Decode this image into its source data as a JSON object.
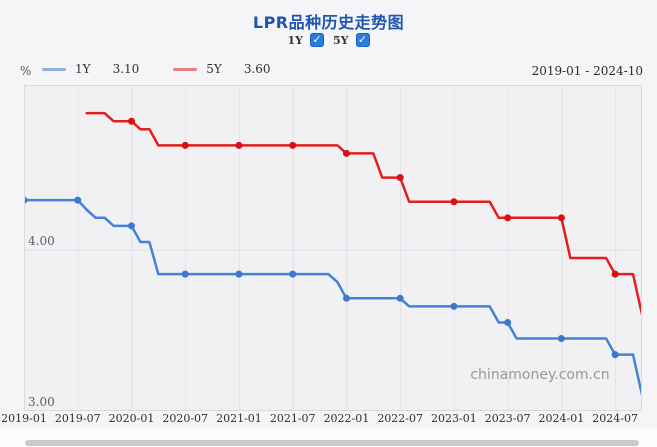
{
  "header": {
    "title": "LPR品种历史走势图",
    "toggles": [
      {
        "label": "1Y",
        "checked": true
      },
      {
        "label": "5Y",
        "checked": true
      }
    ]
  },
  "legend": {
    "unit": "%",
    "items": [
      {
        "label": "1Y",
        "value": "3.10",
        "swatch_color": "#8fb0da"
      },
      {
        "label": "5Y",
        "value": "3.60",
        "swatch_color": "#e38181"
      }
    ],
    "date_range": "2019-01 - 2024-10"
  },
  "watermark": "chinamoney.com.cn",
  "colors": {
    "title_blue": "#1f55ad",
    "checkbox_blue": "#2b7ce0",
    "plot_bg": "#f1f1f3",
    "plot_border": "#d9d9de",
    "gridline": "#e2e2e8",
    "axis_text": "#5c5c60"
  },
  "chart_data": {
    "type": "line",
    "title": "LPR品种历史走势图",
    "xlabel": "",
    "ylabel": "%",
    "x_start": "2019-01",
    "x_end": "2024-10",
    "months_total": 70,
    "x_ticks": [
      "2019-01",
      "2019-07",
      "2020-01",
      "2020-07",
      "2021-01",
      "2021-07",
      "2022-01",
      "2022-07",
      "2023-01",
      "2023-07",
      "2024-01",
      "2024-07"
    ],
    "x_tick_month_index": [
      0,
      6,
      12,
      18,
      24,
      30,
      36,
      42,
      48,
      54,
      60,
      66
    ],
    "marker_months": [
      0,
      6,
      12,
      18,
      24,
      30,
      36,
      42,
      48,
      54,
      60,
      66
    ],
    "ylim": [
      3.0,
      5.025
    ],
    "y_gridlines": [
      {
        "value": 4.0,
        "label": "4.00"
      },
      {
        "value": 3.0,
        "label": "3.00"
      }
    ],
    "grid": "on",
    "legend_position": "top-left",
    "series": [
      {
        "name": "5Y",
        "color": "#e41e1e",
        "marker_color": "#da1010",
        "start_month_index": 7,
        "values": [
          4.85,
          4.85,
          4.85,
          4.8,
          4.8,
          4.8,
          4.75,
          4.75,
          4.65,
          4.65,
          4.65,
          4.65,
          4.65,
          4.65,
          4.65,
          4.65,
          4.65,
          4.65,
          4.65,
          4.65,
          4.65,
          4.65,
          4.65,
          4.65,
          4.65,
          4.65,
          4.65,
          4.65,
          4.65,
          4.6,
          4.6,
          4.6,
          4.6,
          4.45,
          4.45,
          4.45,
          4.3,
          4.3,
          4.3,
          4.3,
          4.3,
          4.3,
          4.3,
          4.3,
          4.3,
          4.3,
          4.2,
          4.2,
          4.2,
          4.2,
          4.2,
          4.2,
          4.2,
          4.2,
          3.95,
          3.95,
          3.95,
          3.95,
          3.95,
          3.85,
          3.85,
          3.85,
          3.6
        ]
      },
      {
        "name": "1Y",
        "color": "#4282d8",
        "marker_color": "#3b79cf",
        "start_month_index": 0,
        "values": [
          4.31,
          4.31,
          4.31,
          4.31,
          4.31,
          4.31,
          4.31,
          4.25,
          4.2,
          4.2,
          4.15,
          4.15,
          4.15,
          4.05,
          4.05,
          3.85,
          3.85,
          3.85,
          3.85,
          3.85,
          3.85,
          3.85,
          3.85,
          3.85,
          3.85,
          3.85,
          3.85,
          3.85,
          3.85,
          3.85,
          3.85,
          3.85,
          3.85,
          3.85,
          3.85,
          3.8,
          3.7,
          3.7,
          3.7,
          3.7,
          3.7,
          3.7,
          3.7,
          3.65,
          3.65,
          3.65,
          3.65,
          3.65,
          3.65,
          3.65,
          3.65,
          3.65,
          3.65,
          3.55,
          3.55,
          3.45,
          3.45,
          3.45,
          3.45,
          3.45,
          3.45,
          3.45,
          3.45,
          3.45,
          3.45,
          3.45,
          3.35,
          3.35,
          3.35,
          3.1
        ]
      }
    ]
  }
}
